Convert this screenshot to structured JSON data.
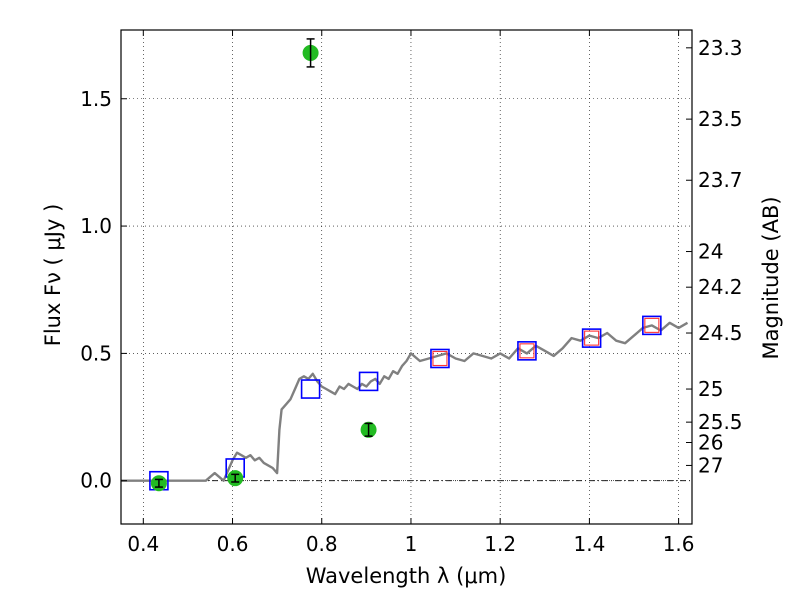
{
  "chart_data": {
    "type": "scatter",
    "xlabel": "Wavelength  λ (μm)",
    "ylabel": "Flux  Fν  ( μJy )",
    "y2label": "Magnitude (AB)",
    "xlim": [
      0.35,
      1.63
    ],
    "ylim": [
      -0.17,
      1.77
    ],
    "grid": true,
    "xticks": [
      0.4,
      0.6,
      0.8,
      1.0,
      1.2,
      1.4,
      1.6
    ],
    "xtick_labels": [
      "0.4",
      "0.6",
      "0.8",
      "1",
      "1.2",
      "1.4",
      "1.6"
    ],
    "yticks": [
      0.0,
      0.5,
      1.0,
      1.5
    ],
    "ytick_labels": [
      "0.0",
      "0.5",
      "1.0",
      "1.5"
    ],
    "y2ticks": [
      {
        "label": "23.3",
        "flux": 1.7
      },
      {
        "label": "23.5",
        "flux": 1.42
      },
      {
        "label": "23.7",
        "flux": 1.18
      },
      {
        "label": "24",
        "flux": 0.9
      },
      {
        "label": "24.2",
        "flux": 0.76
      },
      {
        "label": "24.5",
        "flux": 0.58
      },
      {
        "label": "25",
        "flux": 0.36
      },
      {
        "label": "25.5",
        "flux": 0.23
      },
      {
        "label": "26",
        "flux": 0.15
      },
      {
        "label": "27",
        "flux": 0.06
      }
    ],
    "series": [
      {
        "kind": "model_spectrum",
        "color": "#808080",
        "x": [
          0.35,
          0.38,
          0.42,
          0.46,
          0.5,
          0.54,
          0.56,
          0.58,
          0.6,
          0.61,
          0.62,
          0.63,
          0.64,
          0.65,
          0.66,
          0.67,
          0.68,
          0.69,
          0.7,
          0.705,
          0.71,
          0.72,
          0.73,
          0.74,
          0.75,
          0.76,
          0.77,
          0.78,
          0.79,
          0.8,
          0.81,
          0.82,
          0.83,
          0.84,
          0.85,
          0.86,
          0.87,
          0.88,
          0.89,
          0.9,
          0.91,
          0.92,
          0.93,
          0.94,
          0.95,
          0.96,
          0.97,
          0.98,
          0.99,
          1.0,
          1.02,
          1.04,
          1.06,
          1.08,
          1.1,
          1.12,
          1.14,
          1.16,
          1.18,
          1.2,
          1.22,
          1.24,
          1.26,
          1.28,
          1.3,
          1.32,
          1.34,
          1.36,
          1.38,
          1.4,
          1.42,
          1.44,
          1.46,
          1.48,
          1.5,
          1.52,
          1.54,
          1.56,
          1.58,
          1.6,
          1.62
        ],
        "y": [
          0.0,
          0.0,
          0.0,
          0.0,
          0.0,
          0.0,
          0.03,
          0.0,
          0.08,
          0.11,
          0.1,
          0.09,
          0.1,
          0.08,
          0.09,
          0.07,
          0.06,
          0.05,
          0.03,
          0.2,
          0.28,
          0.3,
          0.32,
          0.36,
          0.4,
          0.41,
          0.4,
          0.42,
          0.39,
          0.37,
          0.36,
          0.35,
          0.34,
          0.37,
          0.36,
          0.38,
          0.37,
          0.36,
          0.38,
          0.37,
          0.39,
          0.4,
          0.38,
          0.41,
          0.4,
          0.43,
          0.42,
          0.45,
          0.47,
          0.5,
          0.47,
          0.48,
          0.49,
          0.5,
          0.48,
          0.47,
          0.5,
          0.49,
          0.48,
          0.5,
          0.48,
          0.52,
          0.5,
          0.53,
          0.51,
          0.49,
          0.52,
          0.56,
          0.55,
          0.57,
          0.56,
          0.58,
          0.55,
          0.54,
          0.57,
          0.6,
          0.61,
          0.59,
          0.62,
          0.6,
          0.62
        ]
      },
      {
        "kind": "model_photometry",
        "marker": "open-square",
        "color": "#0000ff",
        "x": [
          0.435,
          0.606,
          0.775,
          0.905,
          1.065,
          1.26,
          1.405,
          1.54
        ],
        "y": [
          0.0,
          0.05,
          0.36,
          0.39,
          0.48,
          0.51,
          0.56,
          0.61
        ]
      },
      {
        "kind": "secondary_squares",
        "marker": "open-square",
        "color": "#ff3333",
        "x": [
          1.065,
          1.26,
          1.405,
          1.54
        ],
        "y": [
          0.48,
          0.51,
          0.56,
          0.61
        ]
      },
      {
        "kind": "observed_photometry",
        "marker": "filled-circle",
        "color": "#22bb22",
        "x": [
          0.435,
          0.606,
          0.775,
          0.905
        ],
        "y": [
          -0.01,
          0.01,
          1.68,
          0.2
        ],
        "yerr": [
          0.015,
          0.015,
          0.055,
          0.025
        ]
      }
    ]
  }
}
